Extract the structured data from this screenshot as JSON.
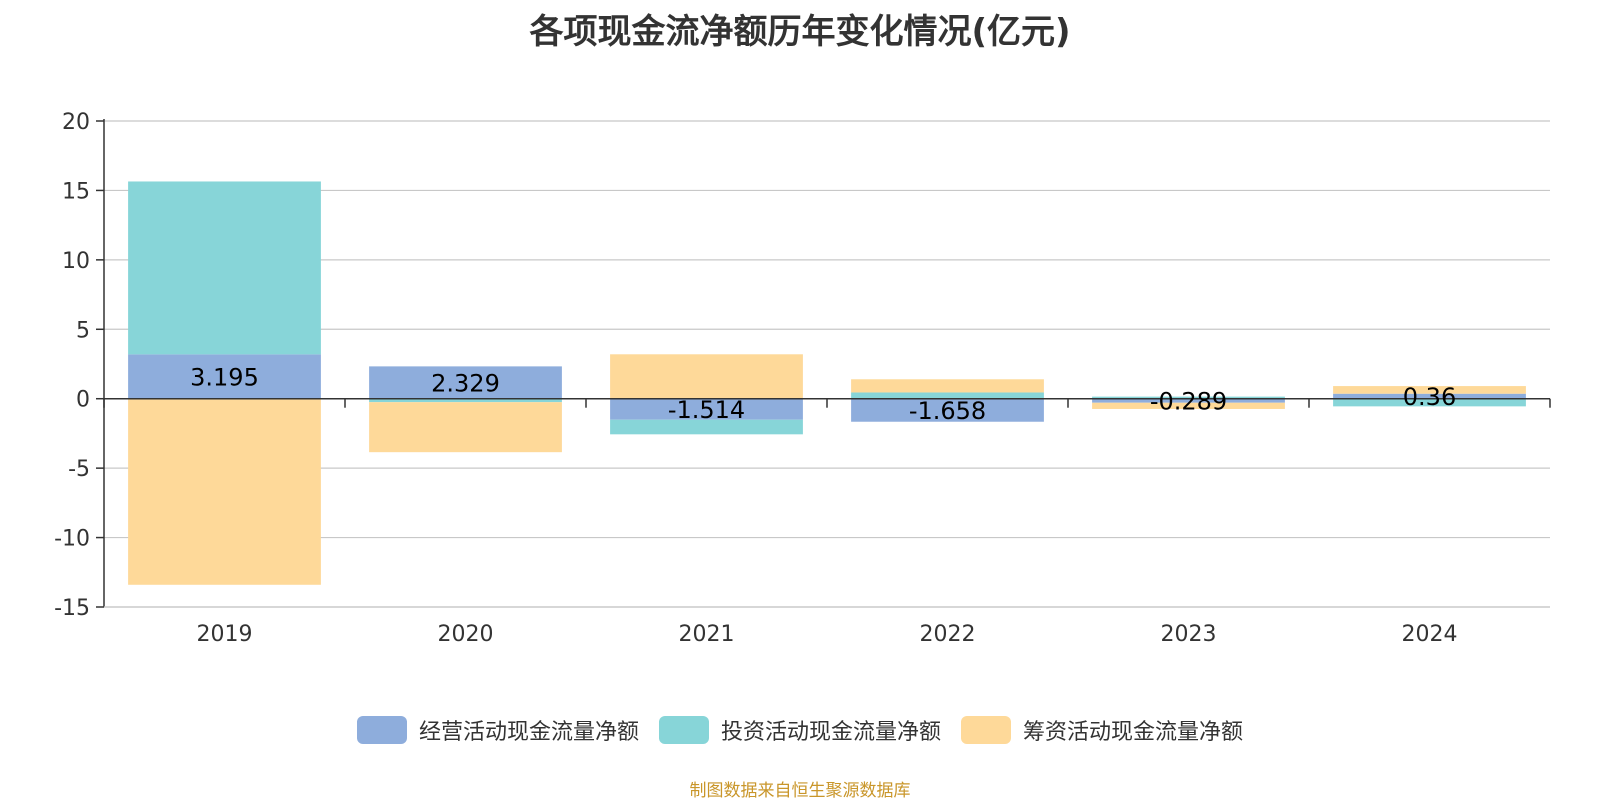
{
  "title": "各项现金流净额历年变化情况(亿元)",
  "source": "制图数据来自恒生聚源数据库",
  "colors": {
    "operating": "#8eaddc",
    "investing": "#87d5d8",
    "financing": "#fed999",
    "axis": "#333333",
    "grid": "#c8c8c8"
  },
  "chart_data": {
    "type": "bar",
    "stacked": true,
    "categories": [
      "2019",
      "2020",
      "2021",
      "2022",
      "2023",
      "2024"
    ],
    "ylim": [
      -15,
      20
    ],
    "yticks": [
      20,
      15,
      10,
      5,
      0,
      -5,
      -10,
      -15
    ],
    "ytick_labels": [
      "20",
      "15",
      "10",
      "5",
      "0",
      "-5",
      "-10",
      "-15"
    ],
    "grid": true,
    "legend_position": "bottom",
    "series": [
      {
        "name": "经营活动现金流量净额",
        "color_key": "operating",
        "values": [
          3.195,
          2.329,
          -1.514,
          -1.658,
          -0.289,
          0.36
        ]
      },
      {
        "name": "投资活动现金流量净额",
        "color_key": "investing",
        "values": [
          12.45,
          -0.25,
          -1.05,
          0.45,
          0.15,
          -0.55
        ]
      },
      {
        "name": "筹资活动现金流量净额",
        "color_key": "financing",
        "values": [
          -13.4,
          -3.6,
          3.2,
          0.95,
          -0.45,
          0.55
        ]
      }
    ],
    "data_labels": [
      "3.195",
      "2.329",
      "-1.514",
      "-1.658",
      "-0.289",
      "0.36"
    ]
  }
}
